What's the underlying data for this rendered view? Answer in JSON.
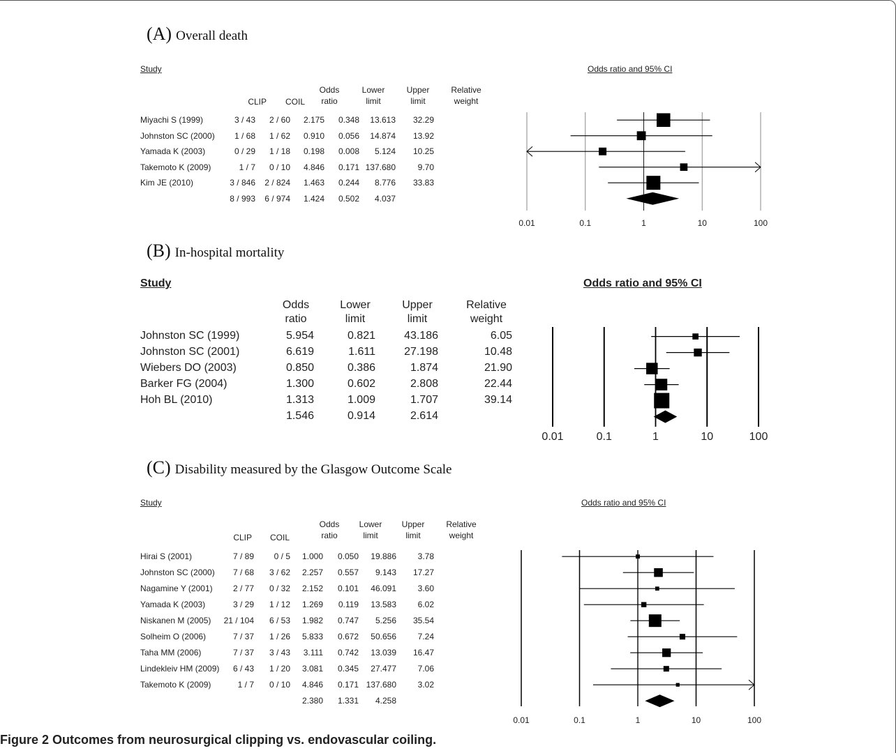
{
  "chart_data": [
    {
      "type": "forest",
      "panel_letter": "(A)",
      "title": "Overall death",
      "study_header": "Study",
      "plot_header": "Odds ratio and 95% CI",
      "columns": [
        "CLIP",
        "COIL",
        "Odds ratio",
        "Lower limit",
        "Upper limit",
        "Relative weight"
      ],
      "x_scale": "log",
      "x_ticks": [
        "0.01",
        "0.1",
        "1",
        "10",
        "100"
      ],
      "xlim": [
        0.01,
        100
      ],
      "studies": [
        {
          "study": "Miyachi S (1999)",
          "clip": "3 / 43",
          "coil": "2 / 60",
          "or": "2.175",
          "lower": "0.348",
          "upper": "13.613",
          "weight": "32.29"
        },
        {
          "study": "Johnston SC (2000)",
          "clip": "1 / 68",
          "coil": "1 / 62",
          "or": "0.910",
          "lower": "0.056",
          "upper": "14.874",
          "weight": "13.92"
        },
        {
          "study": "Yamada K (2003)",
          "clip": "0 / 29",
          "coil": "1 / 18",
          "or": "0.198",
          "lower": "0.008",
          "upper": "5.124",
          "weight": "10.25"
        },
        {
          "study": "Takemoto K (2009)",
          "clip": "1 / 7",
          "coil": "0 / 10",
          "or": "4.846",
          "lower": "0.171",
          "upper": "137.680",
          "weight": "9.70"
        },
        {
          "study": "Kim JE (2010)",
          "clip": "3 / 846",
          "coil": "2 / 824",
          "or": "1.463",
          "lower": "0.244",
          "upper": "8.776",
          "weight": "33.83"
        }
      ],
      "pooled": {
        "clip": "8 / 993",
        "coil": "6 / 974",
        "or": "1.424",
        "lower": "0.502",
        "upper": "4.037"
      }
    },
    {
      "type": "forest",
      "panel_letter": "(B)",
      "title": "In-hospital mortality",
      "study_header": "Study",
      "plot_header": "Odds ratio and 95% CI",
      "columns": [
        "Odds ratio",
        "Lower limit",
        "Upper limit",
        "Relative weight"
      ],
      "x_scale": "log",
      "x_ticks": [
        "0.01",
        "0.1",
        "1",
        "10",
        "100"
      ],
      "xlim": [
        0.01,
        100
      ],
      "studies": [
        {
          "study": "Johnston SC (1999)",
          "or": "5.954",
          "lower": "0.821",
          "upper": "43.186",
          "weight": "6.05"
        },
        {
          "study": "Johnston SC (2001)",
          "or": "6.619",
          "lower": "1.611",
          "upper": "27.198",
          "weight": "10.48"
        },
        {
          "study": "Wiebers DO (2003)",
          "or": "0.850",
          "lower": "0.386",
          "upper": "1.874",
          "weight": "21.90"
        },
        {
          "study": "Barker FG (2004)",
          "or": "1.300",
          "lower": "0.602",
          "upper": "2.808",
          "weight": "22.44"
        },
        {
          "study": "Hoh BL (2010)",
          "or": "1.313",
          "lower": "1.009",
          "upper": "1.707",
          "weight": "39.14"
        }
      ],
      "pooled": {
        "or": "1.546",
        "lower": "0.914",
        "upper": "2.614"
      }
    },
    {
      "type": "forest",
      "panel_letter": "(C)",
      "title": "Disability measured by the Glasgow Outcome Scale",
      "study_header": "Study",
      "plot_header": "Odds ratio and 95% CI",
      "columns": [
        "CLIP",
        "COIL",
        "Odds ratio",
        "Lower limit",
        "Upper limit",
        "Relative weight"
      ],
      "x_scale": "log",
      "x_ticks": [
        "0.01",
        "0.1",
        "1",
        "10",
        "100"
      ],
      "xlim": [
        0.01,
        100
      ],
      "studies": [
        {
          "study": "Hirai S (2001)",
          "clip": "7 / 89",
          "coil": "0 / 5",
          "or": "1.000",
          "lower": "0.050",
          "upper": "19.886",
          "weight": "3.78"
        },
        {
          "study": "Johnston SC (2000)",
          "clip": "7 / 68",
          "coil": "3 / 62",
          "or": "2.257",
          "lower": "0.557",
          "upper": "9.143",
          "weight": "17.27"
        },
        {
          "study": "Nagamine Y (2001)",
          "clip": "2 / 77",
          "coil": "0 / 32",
          "or": "2.152",
          "lower": "0.101",
          "upper": "46.091",
          "weight": "3.60"
        },
        {
          "study": "Yamada K (2003)",
          "clip": "3 / 29",
          "coil": "1 / 12",
          "or": "1.269",
          "lower": "0.119",
          "upper": "13.583",
          "weight": "6.02"
        },
        {
          "study": "Niskanen M (2005)",
          "clip": "21 / 104",
          "coil": "6 / 53",
          "or": "1.982",
          "lower": "0.747",
          "upper": "5.256",
          "weight": "35.54"
        },
        {
          "study": "Solheim O (2006)",
          "clip": "7 / 37",
          "coil": "1 / 26",
          "or": "5.833",
          "lower": "0.672",
          "upper": "50.656",
          "weight": "7.24"
        },
        {
          "study": "Taha MM (2006)",
          "clip": "7 / 37",
          "coil": "3 / 43",
          "or": "3.111",
          "lower": "0.742",
          "upper": "13.039",
          "weight": "16.47"
        },
        {
          "study": "Lindekleiv HM (2009)",
          "clip": "6 / 43",
          "coil": "1 / 20",
          "or": "3.081",
          "lower": "0.345",
          "upper": "27.477",
          "weight": "7.06"
        },
        {
          "study": "Takemoto K (2009)",
          "clip": "1 / 7",
          "coil": "0 / 10",
          "or": "4.846",
          "lower": "0.171",
          "upper": "137.680",
          "weight": "3.02"
        }
      ],
      "pooled": {
        "or": "2.380",
        "lower": "1.331",
        "upper": "4.258"
      }
    }
  ],
  "caption": {
    "label": "Figure 2",
    "text": "Outcomes from neurosurgical clipping vs. endovascular coiling."
  }
}
